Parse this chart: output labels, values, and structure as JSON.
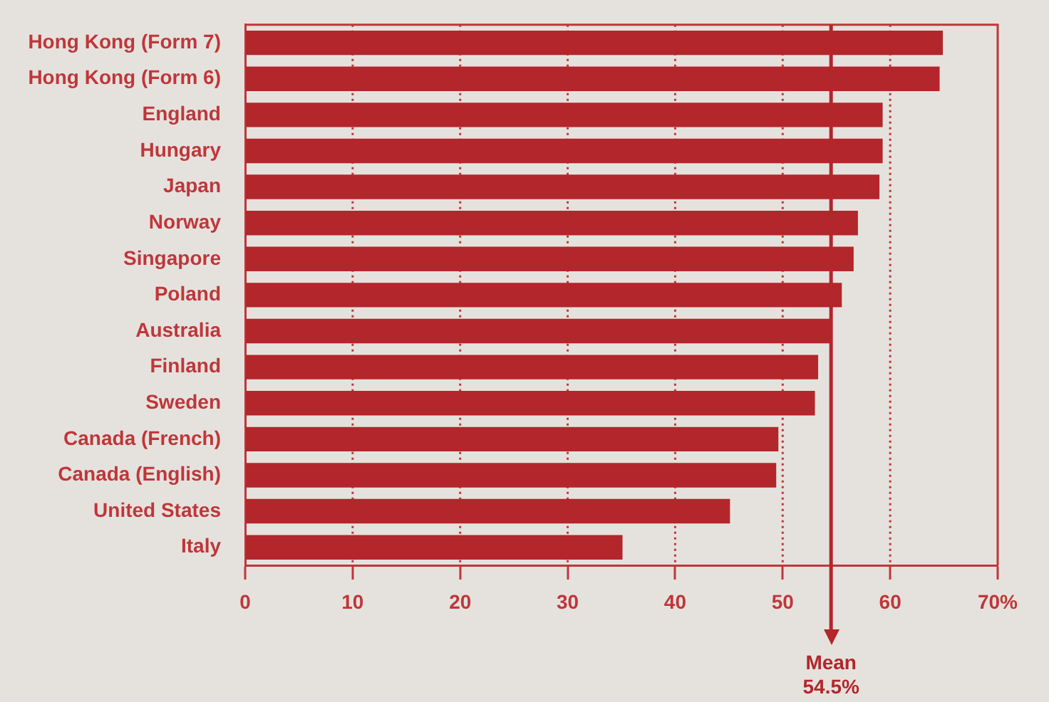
{
  "chart_data": {
    "type": "bar",
    "orientation": "horizontal",
    "categories": [
      "Hong Kong (Form 7)",
      "Hong Kong (Form 6)",
      "England",
      "Hungary",
      "Japan",
      "Norway",
      "Singapore",
      "Poland",
      "Australia",
      "Finland",
      "Sweden",
      "Canada (French)",
      "Canada (English)",
      "United States",
      "Italy"
    ],
    "values": [
      64.9,
      64.6,
      59.3,
      59.3,
      59.0,
      57.0,
      56.6,
      55.5,
      54.4,
      53.3,
      53.0,
      49.6,
      49.4,
      45.1,
      35.1
    ],
    "color": "#b3262b",
    "xlim": [
      0,
      70
    ],
    "xticks": [
      0,
      10,
      20,
      30,
      40,
      50,
      60,
      {
        "value": 70,
        "label": "70%"
      }
    ],
    "grid": "x",
    "ref_lines": [
      {
        "axis": "x",
        "value": 54.5,
        "label": "Mean 54.5%",
        "color": "#b3262b"
      }
    ]
  }
}
